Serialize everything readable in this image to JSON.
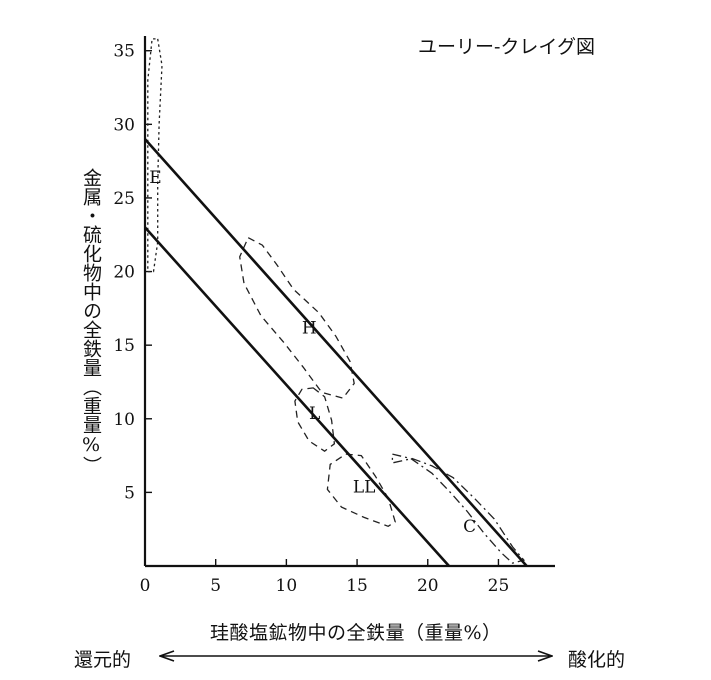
{
  "chart_data": {
    "type": "line",
    "title": "ユーリー-クレイグ図",
    "xlabel": "珪酸塩鉱物中の全鉄量（重量%）",
    "ylabel": "金属・硫化物中の全鉄量（重量%）",
    "xlim": [
      0,
      29
    ],
    "ylim": [
      0,
      36
    ],
    "x_ticks": [
      0,
      5,
      10,
      15,
      20,
      25
    ],
    "y_ticks": [
      5,
      10,
      15,
      20,
      25,
      30,
      35
    ],
    "series": [
      {
        "x": [
          0,
          27
        ],
        "y": [
          29,
          0
        ]
      },
      {
        "x": [
          0,
          21.5
        ],
        "y": [
          23,
          0
        ]
      }
    ],
    "regions": [
      {
        "label": "E",
        "label_at": [
          0.3,
          26.0
        ],
        "style": "dotted",
        "outline": [
          [
            0.9,
            35.8
          ],
          [
            1.2,
            34
          ],
          [
            1.0,
            30
          ],
          [
            0.9,
            26
          ],
          [
            0.9,
            22
          ],
          [
            0.6,
            20
          ],
          [
            0.2,
            20
          ],
          [
            0.2,
            23
          ],
          [
            0.2,
            28
          ],
          [
            0.2,
            33
          ],
          [
            0.5,
            35.8
          ]
        ]
      },
      {
        "label": "H",
        "label_at": [
          11.1,
          15.8
        ],
        "style": "dashed",
        "outline": [
          [
            7.3,
            22.3
          ],
          [
            8.3,
            21.8
          ],
          [
            9.3,
            20.5
          ],
          [
            10.5,
            18.8
          ],
          [
            12.3,
            17.2
          ],
          [
            13.5,
            15.6
          ],
          [
            14.5,
            13.9
          ],
          [
            14.8,
            12.4
          ],
          [
            14.0,
            11.4
          ],
          [
            12.5,
            11.8
          ],
          [
            11.2,
            13.5
          ],
          [
            9.8,
            15.2
          ],
          [
            8.2,
            17.0
          ],
          [
            7.0,
            19.2
          ],
          [
            6.7,
            21.0
          ]
        ]
      },
      {
        "label": "L",
        "label_at": [
          11.6,
          10.0
        ],
        "style": "dashed",
        "outline": [
          [
            11.9,
            12.1
          ],
          [
            12.7,
            11.5
          ],
          [
            13.2,
            9.9
          ],
          [
            13.4,
            8.3
          ],
          [
            12.7,
            7.8
          ],
          [
            11.6,
            8.5
          ],
          [
            10.8,
            9.8
          ],
          [
            10.6,
            11.2
          ],
          [
            11.1,
            12.0
          ]
        ]
      },
      {
        "label": "LL",
        "label_at": [
          14.7,
          5.0
        ],
        "style": "dashed",
        "outline": [
          [
            14.2,
            7.6
          ],
          [
            15.3,
            7.5
          ],
          [
            16.3,
            6.1
          ],
          [
            17.2,
            4.6
          ],
          [
            17.7,
            3.0
          ],
          [
            17.2,
            2.7
          ],
          [
            15.5,
            3.3
          ],
          [
            13.9,
            4.0
          ],
          [
            12.9,
            5.2
          ],
          [
            13.1,
            6.9
          ]
        ]
      },
      {
        "label": "C",
        "label_at": [
          22.5,
          2.3
        ],
        "style": "dash-dot",
        "outline": [
          [
            17.5,
            7.6
          ],
          [
            18.8,
            7.3
          ],
          [
            20.3,
            6.3
          ],
          [
            21.7,
            4.9
          ],
          [
            22.8,
            3.7
          ],
          [
            24.0,
            2.2
          ],
          [
            25.2,
            0.9
          ],
          [
            26.0,
            0.2
          ],
          [
            26.8,
            0.4
          ],
          [
            26.0,
            1.3
          ],
          [
            24.7,
            3.2
          ],
          [
            23.3,
            4.6
          ],
          [
            21.8,
            6.0
          ],
          [
            20.3,
            6.8
          ],
          [
            18.9,
            7.3
          ],
          [
            17.5,
            7.0
          ]
        ]
      }
    ],
    "direction_labels": {
      "left": "還元的",
      "right": "酸化的"
    },
    "grid": false
  }
}
